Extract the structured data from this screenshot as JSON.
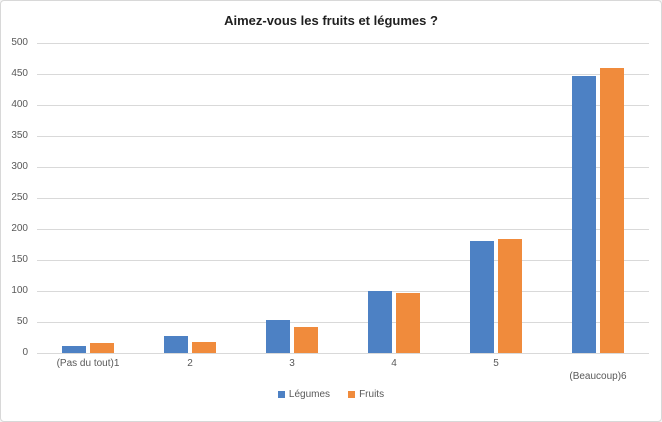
{
  "window": {
    "background": "#ffffff"
  },
  "colors": {
    "border": "#d8d8d8",
    "grid": "#d9d9d9",
    "tick_text": "#595959",
    "title_text": "#1f1f1f",
    "legumes_blue": "#4d81c4",
    "fruits_orange": "#f08b3c"
  },
  "chart_data": {
    "type": "bar",
    "title": "Aimez-vous les fruits et légumes ?",
    "categories": [
      "(Pas du tout)1",
      "2",
      "3",
      "4",
      "5",
      "(Beaucoup)6"
    ],
    "series": [
      {
        "name": "Légumes",
        "color": "#4d81c4",
        "values": [
          12,
          27,
          53,
          100,
          180,
          447
        ]
      },
      {
        "name": "Fruits",
        "color": "#f08b3c",
        "values": [
          16,
          18,
          42,
          97,
          184,
          460
        ]
      }
    ],
    "xlabel": "",
    "ylabel": "",
    "ylim": [
      0,
      500
    ],
    "yticks": [
      0,
      50,
      100,
      150,
      200,
      250,
      300,
      350,
      400,
      450,
      500
    ],
    "grid": "horizontal",
    "legend_position": "bottom",
    "data_labels": false
  }
}
